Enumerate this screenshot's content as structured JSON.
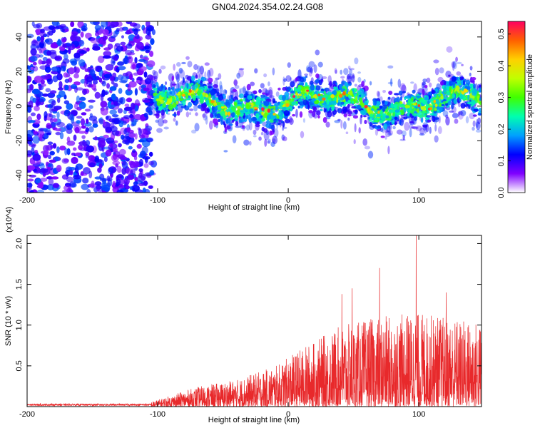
{
  "page_title": "GN04.2024.354.02.24.G08",
  "chart_data": [
    {
      "type": "heatmap",
      "title": "GN04.2024.354.02.24.G08",
      "xlabel": "Height of straight line (km)",
      "ylabel": "Frequency (Hz)",
      "xlim": [
        -200,
        148
      ],
      "ylim": [
        -50,
        49
      ],
      "xticks": [
        -200,
        -100,
        0,
        100
      ],
      "yticks": [
        -40,
        -20,
        0,
        20,
        40
      ],
      "colorbar": {
        "label": "Normalized spectral amplitude",
        "range": [
          0,
          0.54
        ],
        "ticks": [
          "0.0",
          "0.1",
          "0.2",
          "0.3",
          "0.4",
          "0.5"
        ],
        "tick_values": [
          0,
          0.1,
          0.2,
          0.3,
          0.4,
          0.5
        ],
        "colormap": [
          "#ffffff",
          "#7f00ff",
          "#0000ff",
          "#00a0ff",
          "#00ffb0",
          "#40ff00",
          "#c0ff00",
          "#ffd000",
          "#ff6000",
          "#ff0060"
        ]
      },
      "regions": [
        {
          "x_range": [
            -200,
            -103
          ],
          "description": "broadband noise",
          "freq_range": [
            -50,
            49
          ],
          "level": 0.12
        },
        {
          "x_range": [
            -103,
            148
          ],
          "description": "signal band",
          "freq_center": 2,
          "freq_halfwidth": 10,
          "level_peak": 0.52
        }
      ]
    },
    {
      "type": "line",
      "xlabel": "Height of straight line (km)",
      "ylabel": "SNR (10 * v/v)",
      "y_multiplier": "(x10^4)",
      "xlim": [
        -200,
        148
      ],
      "ylim": [
        0,
        2.1
      ],
      "xticks": [
        -200,
        -100,
        0,
        100
      ],
      "yticks": [
        "0.5",
        "1.0",
        "1.5",
        "2.0"
      ],
      "ytick_values": [
        0.5,
        1.0,
        1.5,
        2.0
      ],
      "color": "#e8292b",
      "envelope": [
        {
          "x": -200,
          "y": 0.02
        },
        {
          "x": -110,
          "y": 0.03
        },
        {
          "x": -95,
          "y": 0.1
        },
        {
          "x": -70,
          "y": 0.22
        },
        {
          "x": -40,
          "y": 0.3
        },
        {
          "x": -10,
          "y": 0.45
        },
        {
          "x": 10,
          "y": 0.65
        },
        {
          "x": 40,
          "y": 0.9
        },
        {
          "x": 70,
          "y": 1.0
        },
        {
          "x": 100,
          "y": 1.05
        },
        {
          "x": 148,
          "y": 0.95
        }
      ],
      "peaks": [
        {
          "x": 41,
          "y": 1.38
        },
        {
          "x": 49,
          "y": 1.45
        },
        {
          "x": 70,
          "y": 1.7
        },
        {
          "x": 98,
          "y": 2.15
        },
        {
          "x": 121,
          "y": 1.4
        }
      ]
    }
  ]
}
